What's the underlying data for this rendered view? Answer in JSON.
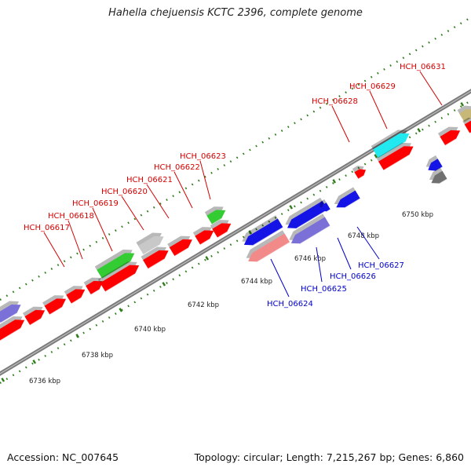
{
  "title": "Hahella chejuensis KCTC 2396, complete genome",
  "footer": {
    "accession": "Accession: NC_007645",
    "topology": "Topology: circular; Length: 7,215,267 bp; Genes: 6,860"
  },
  "colors": {
    "backbone": "#7a7a7a",
    "tick": "#2e7d1a",
    "red": "#ff0000",
    "green": "#33cc33",
    "cyan": "#22e8f0",
    "blue": "#1414e6",
    "lavender": "#7a70d8",
    "salmon": "#f28a8a",
    "silver": "#c8c8c8",
    "darkgray": "#707070",
    "khaki": "#c8b878",
    "label_forward": "#d40000",
    "label_reverse": "#0000cc"
  },
  "scale_labels": [
    "6736 kbp",
    "6738 kbp",
    "6740 kbp",
    "6742 kbp",
    "6744 kbp",
    "6746 kbp",
    "6748 kbp",
    "6750 kbp"
  ],
  "forward_gene_labels": [
    "HCH_06617",
    "HCH_06618",
    "HCH_06619",
    "HCH_06620",
    "HCH_06621",
    "HCH_06622",
    "HCH_06623",
    "HCH_06628",
    "HCH_06629",
    "HCH_06631"
  ],
  "reverse_gene_labels": [
    "HCH_06624",
    "HCH_06625",
    "HCH_06626",
    "HCH_06627"
  ]
}
